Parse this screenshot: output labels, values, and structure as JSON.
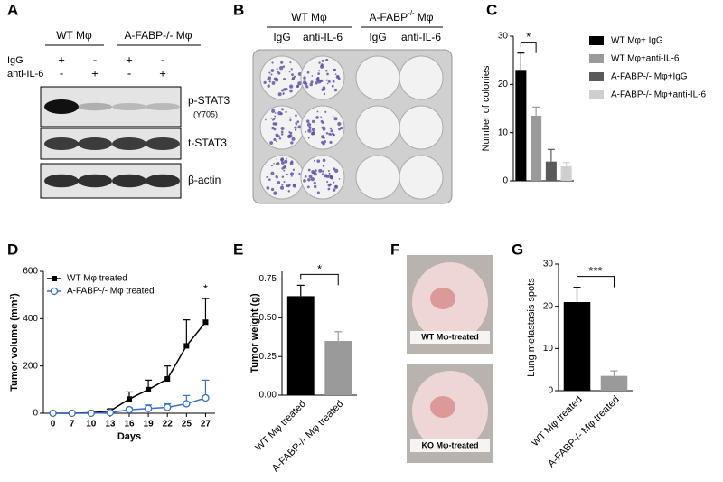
{
  "panel_labels": [
    "A",
    "B",
    "C",
    "D",
    "E",
    "F",
    "G"
  ],
  "blot": {
    "groups": [
      "WT Mφ",
      "A-FABP-/- Mφ"
    ],
    "rows": [
      {
        "label": "IgG",
        "marks": [
          "+",
          "-",
          "+",
          "-"
        ]
      },
      {
        "label": "anti-IL-6",
        "marks": [
          "-",
          "+",
          "-",
          "+"
        ]
      }
    ],
    "bands": [
      "p-STAT3",
      "(Y705)",
      "t-STAT3",
      "β-actin"
    ]
  },
  "plate": {
    "groups": [
      {
        "name": "WT Mφ"
      },
      {
        "name": "A-FABP",
        "sup": "-/-",
        "suffix": "Mφ"
      }
    ],
    "columns": [
      "IgG",
      "anti-IL-6",
      "IgG",
      "anti-IL-6"
    ]
  },
  "photos": [
    "WT Mφ-treated",
    "KO Mφ-treated"
  ],
  "chart_data": [
    {
      "type": "bar",
      "ylabel": "Number of colonies",
      "categories": [
        "WT Mφ+ IgG",
        "WT Mφ+anti-IL-6",
        "A-FABP-/- Mφ+IgG",
        "A-FABP-/- Mφ+anti-IL-6"
      ],
      "values": [
        23,
        13.5,
        4,
        3
      ],
      "errors": [
        3.5,
        1.8,
        2.5,
        0.8
      ],
      "colors": [
        "#000000",
        "#9a9a9a",
        "#5a5a5a",
        "#cfcfcf"
      ],
      "ylim": [
        0,
        30
      ],
      "yticks": [
        0,
        10,
        20,
        30
      ],
      "legend": "right",
      "annotations": [
        {
          "text": "*",
          "from": 0,
          "to": 1
        }
      ]
    },
    {
      "type": "line",
      "ylabel": "Tumor volume (mm³)",
      "xlabel": "Days",
      "categories": [
        "0",
        "7",
        "10",
        "13",
        "16",
        "19",
        "22",
        "25",
        "27"
      ],
      "series": [
        {
          "name": "WT Mφ treated",
          "color": "#000000",
          "marker": "square",
          "values": [
            0,
            0,
            2,
            10,
            60,
            100,
            145,
            285,
            385
          ],
          "errors": [
            0,
            0,
            3,
            8,
            30,
            40,
            55,
            110,
            100
          ]
        },
        {
          "name": "A-FABP-/- Mφ treated",
          "color": "#3a6fc4",
          "marker": "circle",
          "values": [
            0,
            0,
            0,
            3,
            15,
            20,
            25,
            40,
            65
          ],
          "errors": [
            0,
            0,
            2,
            5,
            8,
            15,
            15,
            35,
            75
          ]
        }
      ],
      "ylim": [
        0,
        600
      ],
      "yticks": [
        0,
        200,
        400,
        600
      ],
      "legend": "upper left",
      "annotations": [
        {
          "text": "*",
          "at": 8
        }
      ]
    },
    {
      "type": "bar",
      "ylabel": "Tumor weight (g)",
      "categories": [
        "WT Mφ treated",
        "A-FABP-/- Mφ treated"
      ],
      "values": [
        0.64,
        0.35
      ],
      "errors": [
        0.07,
        0.06
      ],
      "colors": [
        "#000000",
        "#9a9a9a"
      ],
      "ylim": [
        0,
        0.8
      ],
      "yticks": [
        {
          "value": 0,
          "label": "0.00"
        },
        {
          "value": 0.25,
          "label": "0.25"
        },
        {
          "value": 0.5,
          "label": "0.50"
        },
        {
          "value": 0.75,
          "label": "0.75"
        }
      ],
      "annotations": [
        {
          "text": "*",
          "from": 0,
          "to": 1
        }
      ]
    },
    {
      "type": "bar",
      "ylabel": "Lung metastasis spots",
      "categories": [
        "WT Mφ treated",
        "A-FABP-/- Mφ treated"
      ],
      "values": [
        21,
        3.5
      ],
      "errors": [
        3.5,
        1.2
      ],
      "colors": [
        "#000000",
        "#9a9a9a"
      ],
      "ylim": [
        0,
        30
      ],
      "yticks": [
        0,
        10,
        20,
        30
      ],
      "annotations": [
        {
          "text": "***",
          "from": 0,
          "to": 1
        }
      ]
    }
  ]
}
